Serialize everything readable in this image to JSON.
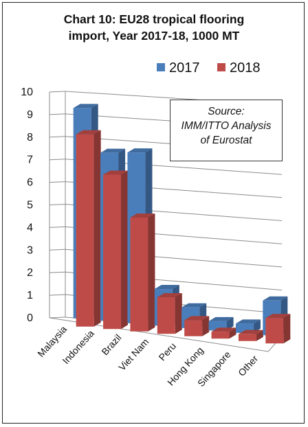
{
  "chart_data": {
    "type": "bar",
    "title_line1": "Chart 10: EU28 tropical flooring",
    "title_line2": "import, Year 2017-18, 1000 MT",
    "categories": [
      "Malaysia",
      "Indonesia",
      "Brazil",
      "Viet Nam",
      "Peru",
      "Hong Kong",
      "Singapore",
      "Other"
    ],
    "series": [
      {
        "name": "2017",
        "color": "#4a7ebb",
        "values": [
          9.3,
          7.4,
          7.5,
          1.6,
          0.9,
          0.4,
          0.4,
          1.5
        ]
      },
      {
        "name": "2018",
        "color": "#be4b48",
        "values": [
          8.5,
          6.8,
          5.0,
          1.6,
          0.7,
          0.3,
          0.3,
          1.1
        ]
      }
    ],
    "yticks": [
      "0",
      "1",
      "2",
      "3",
      "4",
      "5",
      "6",
      "7",
      "8",
      "9",
      "10"
    ],
    "ylim": [
      0,
      10
    ],
    "grid": true,
    "legend_position": "top-right",
    "source_line1": "Source:",
    "source_line2": "IMM/ITTO Analysis",
    "source_line3": "of Eurostat"
  }
}
